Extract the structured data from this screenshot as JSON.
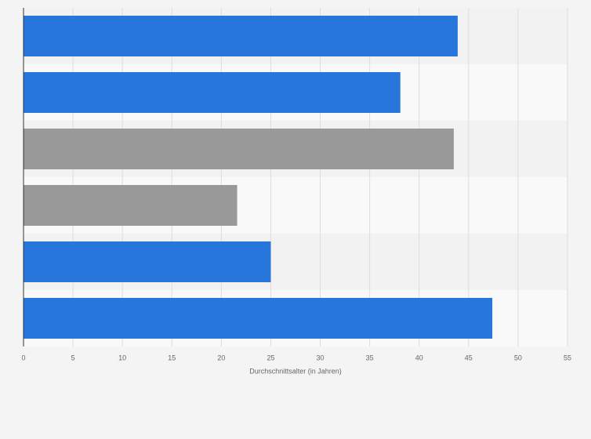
{
  "chart_data": {
    "type": "bar",
    "orientation": "horizontal",
    "x_label": "Durchschnittsalter (in Jahren)",
    "categories": [
      null,
      null,
      null,
      null,
      null,
      null
    ],
    "values": [
      43.9,
      38.1,
      43.5,
      21.6,
      25.0,
      47.4
    ],
    "colors": [
      "#2776db",
      "#2776db",
      "#999999",
      "#999999",
      "#2776db",
      "#2776db"
    ],
    "xlim": [
      0,
      55
    ],
    "xticks": [
      0,
      5,
      10,
      15,
      20,
      25,
      30,
      35,
      40,
      45,
      50,
      55
    ],
    "grid": true
  }
}
